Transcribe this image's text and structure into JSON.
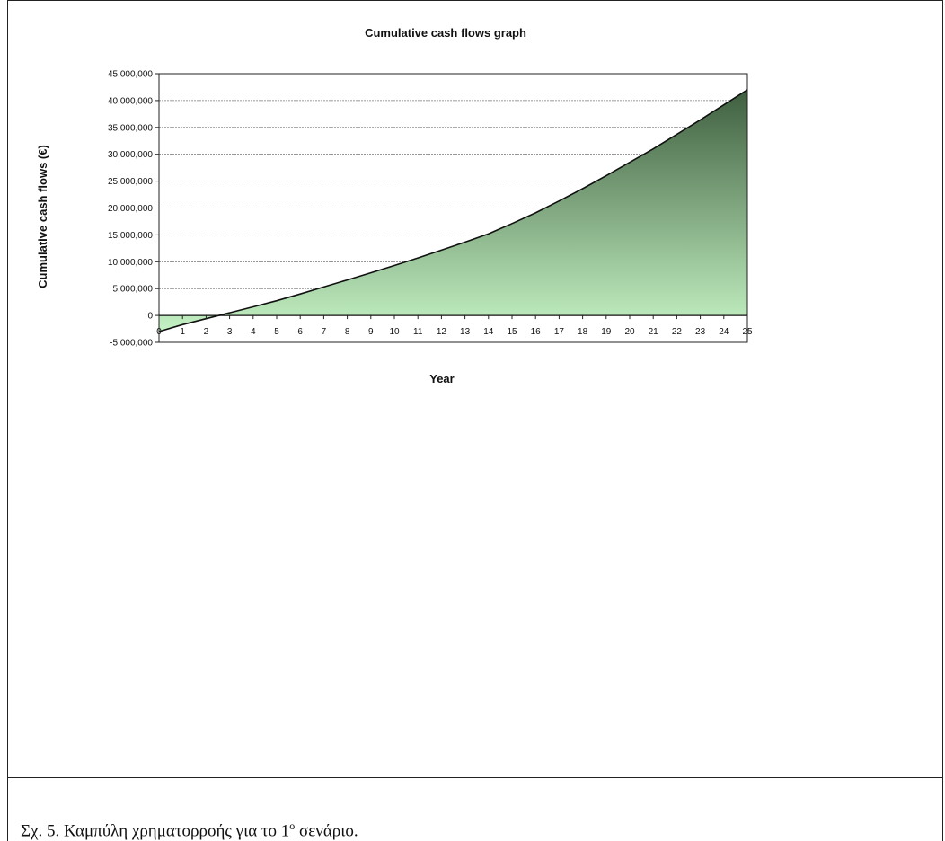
{
  "caption": {
    "prefix": "Σχ. 5. Καμπύλη χρηματορροής για το 1",
    "superscript": "ο",
    "suffix": " σενάριο."
  },
  "chart_data": {
    "type": "area",
    "title": "Cumulative cash flows graph",
    "xlabel": "Year",
    "ylabel": "Cumulative cash flows (€)",
    "x": [
      0,
      1,
      2,
      3,
      4,
      5,
      6,
      7,
      8,
      9,
      10,
      11,
      12,
      13,
      14,
      15,
      16,
      17,
      18,
      19,
      20,
      21,
      22,
      23,
      24,
      25
    ],
    "series": [
      {
        "values": [
          -3000000,
          -1700000,
          -600000,
          500000,
          1600000,
          2750000,
          4000000,
          5300000,
          6600000,
          7950000,
          9300000,
          10700000,
          12150000,
          13650000,
          15200000,
          17100000,
          19100000,
          21300000,
          23600000,
          26000000,
          28500000,
          31000000,
          33700000,
          36400000,
          39200000,
          42000000
        ]
      }
    ],
    "yticks": [
      "45,000,000",
      "40,000,000",
      "35,000,000",
      "30,000,000",
      "25,000,000",
      "20,000,000",
      "15,000,000",
      "10,000,000",
      "5,000,000",
      "0",
      "-5,000,000"
    ],
    "ylim": [
      -5000000,
      45000000
    ],
    "xlim": [
      0,
      25
    ],
    "grid": true,
    "fill_color_low": "#c4f2c4",
    "fill_color_high": "#3f5f3f",
    "line_color": "#111111"
  }
}
